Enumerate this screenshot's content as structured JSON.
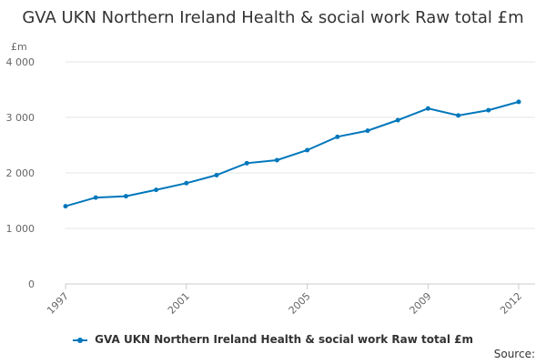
{
  "chart_data": {
    "type": "line",
    "title": "GVA UKN Northern Ireland Health & social work Raw total £m",
    "ylabel": "£m",
    "xlabel": "",
    "x": [
      1997,
      1998,
      1999,
      2000,
      2001,
      2002,
      2003,
      2004,
      2005,
      2006,
      2007,
      2008,
      2009,
      2010,
      2011,
      2012
    ],
    "series": [
      {
        "name": "GVA UKN Northern Ireland Health & social work Raw total £m",
        "values": [
          1400,
          1555,
          1580,
          1695,
          1815,
          1960,
          2175,
          2230,
          2410,
          2650,
          2760,
          2950,
          3160,
          3035,
          3130,
          3280
        ],
        "color": "#0077bb"
      }
    ],
    "ylim": [
      0,
      4000
    ],
    "yticks": [
      0,
      1000,
      2000,
      3000,
      4000
    ],
    "ytick_labels": [
      "0",
      "1 000",
      "2 000",
      "3 000",
      "4 000"
    ],
    "xtick_labels": [
      "1997",
      "2001",
      "2005",
      "2009",
      "2012"
    ],
    "grid": true,
    "legend_position": "bottom"
  },
  "footer": {
    "source_label": "Source:"
  }
}
